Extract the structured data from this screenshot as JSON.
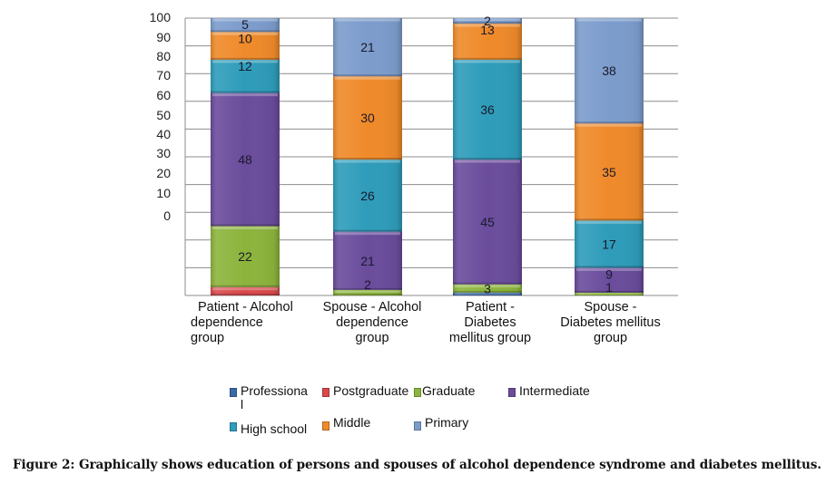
{
  "chart_data": {
    "type": "bar",
    "stacked": true,
    "title": "",
    "xlabel": "",
    "ylabel": "",
    "ylim": [
      0,
      100
    ],
    "grid": true,
    "y_tick_labels": [
      "100",
      "90",
      "80",
      "70",
      "60",
      "50",
      "40",
      "30",
      "20",
      "10",
      "0"
    ],
    "categories": [
      "Patient - Alcohol dependence group",
      "Spouse - Alcohol dependence group",
      "Patient - Diabetes mellitus group",
      "Spouse - Diabetes mellitus group"
    ],
    "category_label_lines": [
      [
        "Patient - Alcohol",
        "dependence",
        "group"
      ],
      [
        "Spouse - Alcohol",
        "dependence",
        "group"
      ],
      [
        "Patient -",
        "Diabetes",
        "mellitus group"
      ],
      [
        "Spouse -",
        "Diabetes mellitus",
        "group"
      ]
    ],
    "series": [
      {
        "name": "Professional",
        "legend_label": "Professiona l",
        "color": "#3a68a8",
        "values": [
          0,
          0,
          1,
          0
        ],
        "labels": [
          "",
          "",
          "",
          ""
        ]
      },
      {
        "name": "Postgraduate",
        "legend_label": "Postgraduate",
        "color": "#d9484b",
        "values": [
          3,
          0,
          0,
          0
        ],
        "labels": [
          "",
          "",
          "",
          ""
        ]
      },
      {
        "name": "Graduate",
        "legend_label": "Graduate",
        "color": "#8cb43c",
        "values": [
          22,
          2,
          3,
          1
        ],
        "labels": [
          "22",
          "",
          "3",
          ""
        ]
      },
      {
        "name": "Intermediate",
        "legend_label": "Intermediate",
        "color": "#6a4c9c",
        "values": [
          48,
          21,
          45,
          9
        ],
        "labels": [
          "48",
          "21",
          "45",
          "9"
        ]
      },
      {
        "name": "High school",
        "legend_label": "High school",
        "color": "#2e9cba",
        "values": [
          12,
          26,
          36,
          17
        ],
        "labels": [
          "12",
          "26",
          "36",
          "17"
        ]
      },
      {
        "name": "Middle",
        "legend_label": "Middle",
        "color": "#ef8a2a",
        "values": [
          10,
          30,
          13,
          35
        ],
        "labels": [
          "10",
          "30",
          "13",
          "35"
        ]
      },
      {
        "name": "Primary",
        "legend_label": "Primary",
        "color": "#7c9ccc",
        "values": [
          5,
          21,
          2,
          38
        ],
        "labels": [
          "5",
          "21",
          "2",
          "38"
        ]
      }
    ],
    "extra_labels": [
      {
        "category_index": 1,
        "series": "Graduate",
        "text": "2"
      },
      {
        "category_index": 3,
        "series": "Graduate",
        "text": "1"
      }
    ],
    "legend_position": "bottom"
  },
  "legend": {
    "items": [
      {
        "label": "Professiona",
        "label2": "l",
        "color": "#3a68a8"
      },
      {
        "label": "Postgraduate",
        "color": "#d9484b"
      },
      {
        "label": "Graduate",
        "color": "#8cb43c"
      },
      {
        "label": "Intermediate",
        "color": "#6a4c9c"
      },
      {
        "label": "High school",
        "color": "#2e9cba"
      },
      {
        "label": "Middle",
        "color": "#ef8a2a"
      },
      {
        "label": "Primary",
        "color": "#7c9ccc"
      }
    ]
  },
  "caption": "Figure 2: Graphically shows education of persons and spouses of alcohol dependence syndrome and diabetes mellitus."
}
